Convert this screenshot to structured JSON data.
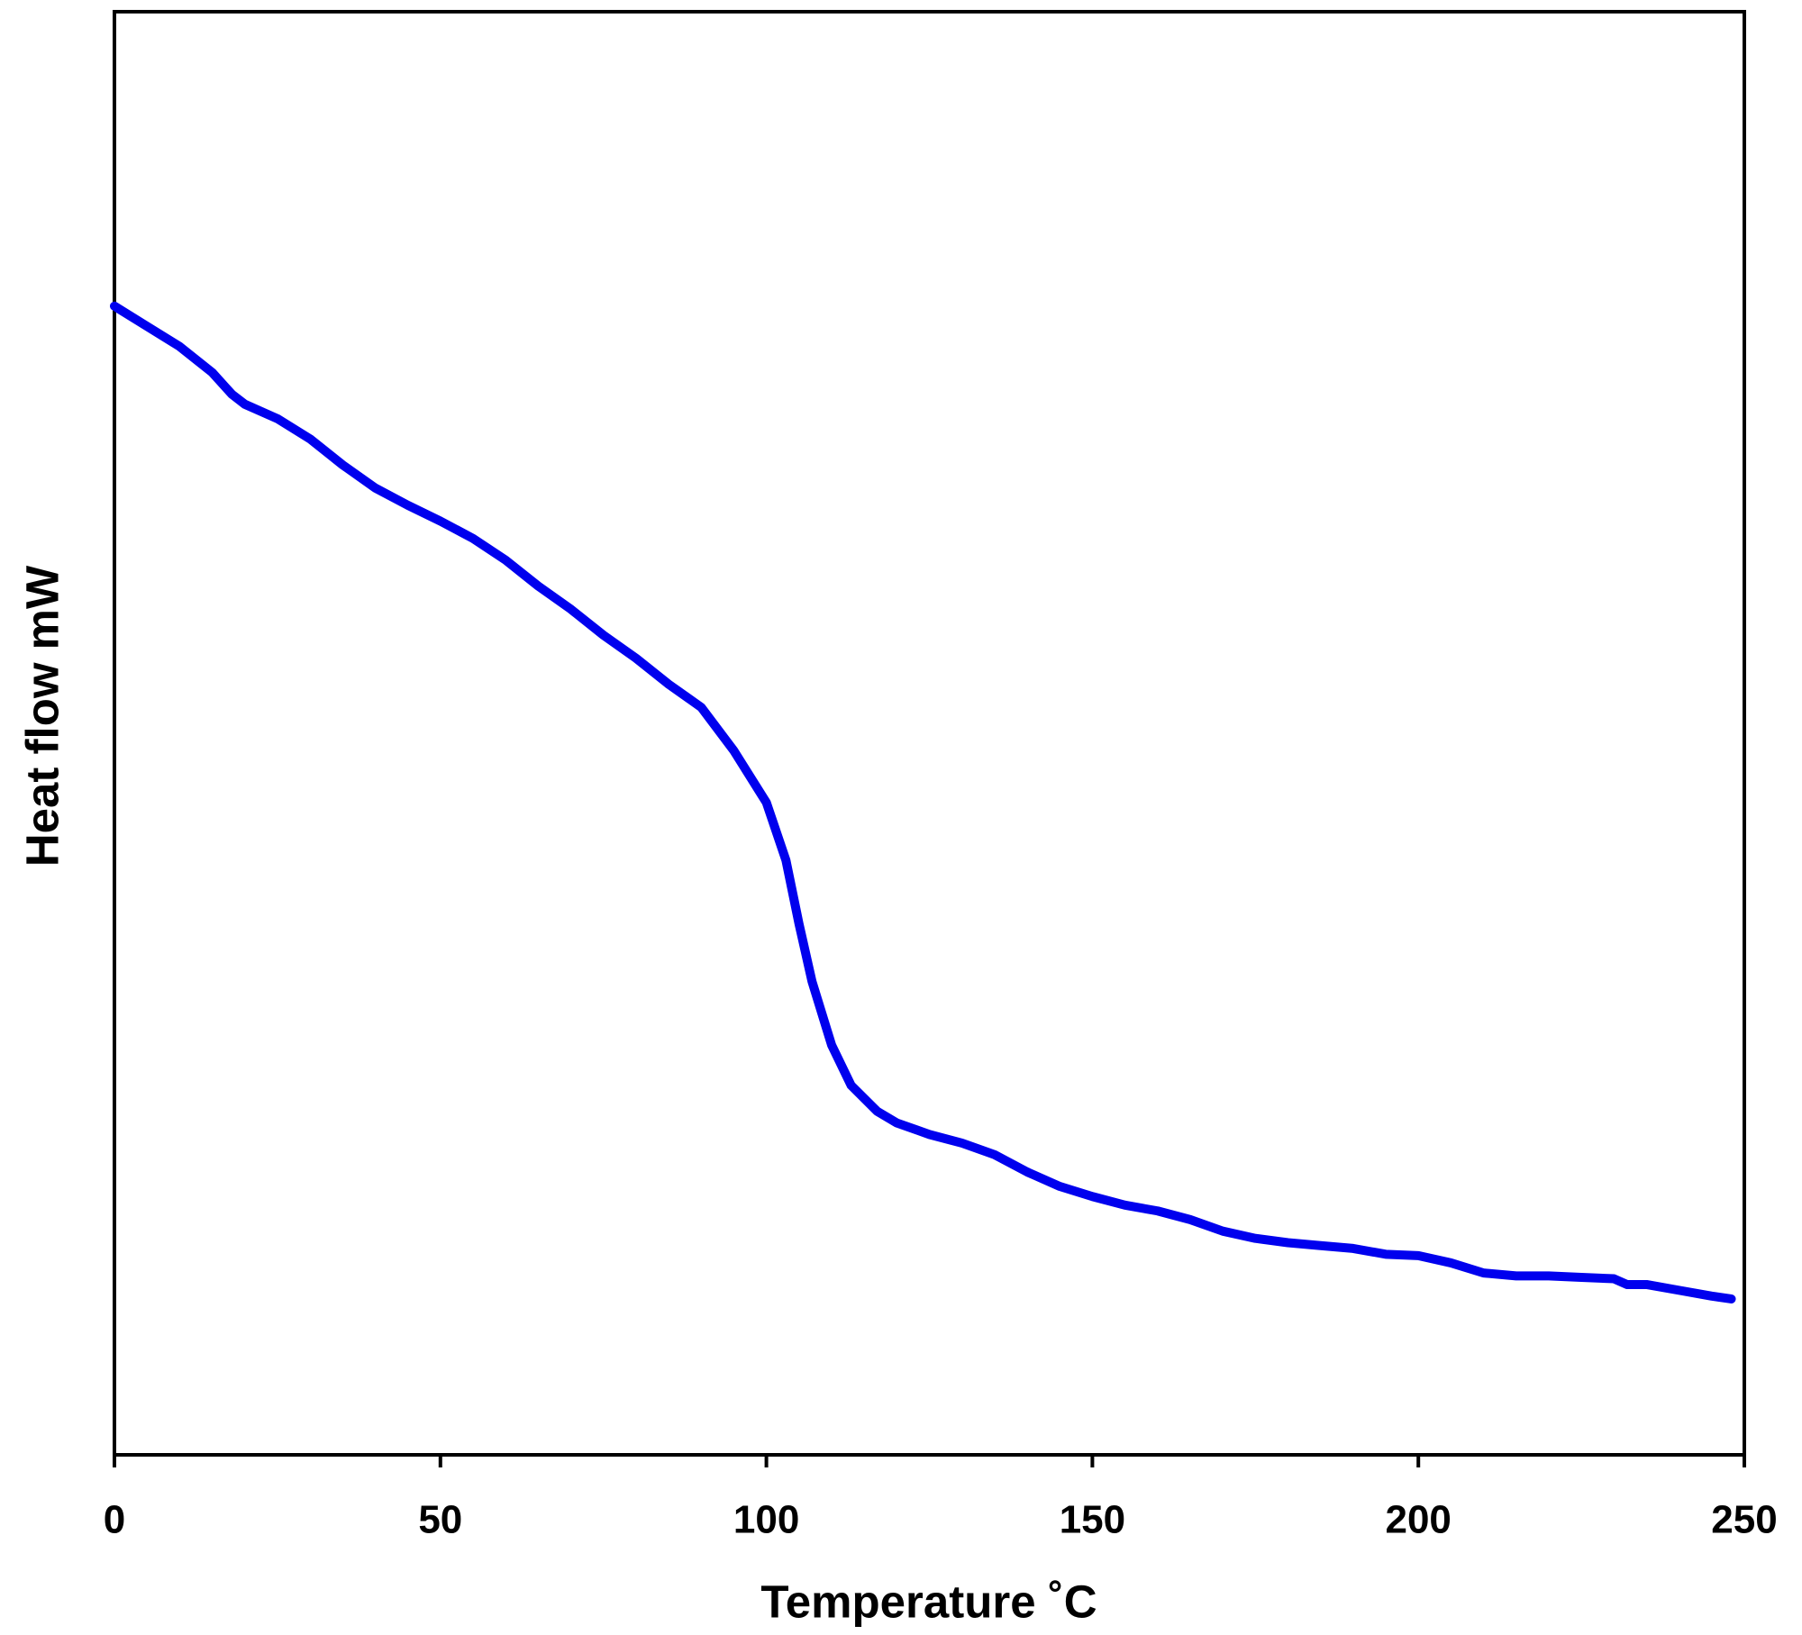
{
  "chart_data": {
    "type": "line",
    "x_label": "Temperature ˚C",
    "y_label": "Heat flow mW",
    "xlim": [
      0,
      250
    ],
    "xticks": [
      0,
      50,
      100,
      150,
      200,
      250
    ],
    "ylim": [
      0,
      100
    ],
    "grid": false,
    "series": [
      {
        "color": "#0000ee",
        "x": [
          0,
          5,
          10,
          15,
          18,
          20,
          25,
          30,
          35,
          40,
          45,
          50,
          55,
          60,
          65,
          70,
          75,
          80,
          85,
          90,
          95,
          100,
          103,
          105,
          107,
          110,
          113,
          117,
          120,
          125,
          130,
          135,
          140,
          145,
          150,
          155,
          160,
          165,
          170,
          175,
          180,
          185,
          190,
          195,
          200,
          205,
          210,
          215,
          220,
          225,
          230,
          232,
          235,
          240,
          245,
          248
        ],
        "values": [
          79.6,
          78.2,
          76.8,
          75.0,
          73.5,
          72.8,
          71.8,
          70.4,
          68.6,
          67.0,
          65.8,
          64.7,
          63.5,
          62.0,
          60.2,
          58.6,
          56.8,
          55.2,
          53.4,
          51.8,
          48.8,
          45.2,
          41.2,
          36.8,
          32.8,
          28.4,
          25.6,
          23.8,
          23.0,
          22.2,
          21.6,
          20.8,
          19.6,
          18.6,
          17.9,
          17.3,
          16.9,
          16.3,
          15.5,
          15.0,
          14.7,
          14.5,
          14.3,
          13.9,
          13.8,
          13.3,
          12.6,
          12.4,
          12.4,
          12.3,
          12.2,
          11.8,
          11.8,
          11.4,
          11.0,
          10.8
        ]
      }
    ]
  }
}
